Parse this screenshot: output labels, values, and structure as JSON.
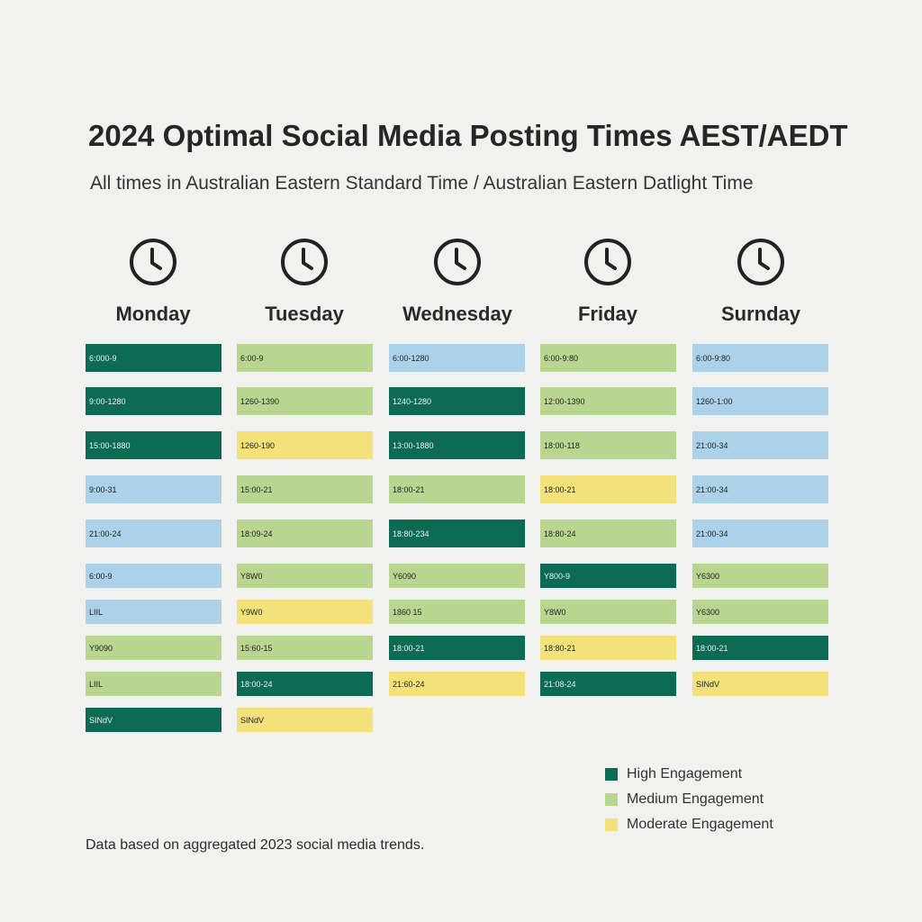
{
  "colors": {
    "high": "#0d6b53",
    "medium": "#b9d690",
    "moderate": "#f3e17a",
    "other": "#abd2e8"
  },
  "chart_data": {
    "type": "table",
    "title": "2024 Optimal Social Media Posting Times AEST/AEDT",
    "subtitle": "All times in Australian Eastern Standard Time / Australian Eastern Datlight Time",
    "days": [
      {
        "name": "Monday",
        "slots": [
          {
            "label": "6:000-9",
            "level": "high"
          },
          {
            "label": "9:00-1280",
            "level": "high"
          },
          {
            "label": "15:00-1880",
            "level": "high"
          },
          {
            "label": "9:00-31",
            "level": "other"
          },
          {
            "label": "21:00-24",
            "level": "other"
          },
          {
            "label": "6:00-9",
            "level": "other"
          },
          {
            "label": "LIIL",
            "level": "other"
          },
          {
            "label": "Y9090",
            "level": "medium"
          },
          {
            "label": "LIIL",
            "level": "medium"
          },
          {
            "label": "SINdV",
            "level": "high"
          }
        ]
      },
      {
        "name": "Tuesday",
        "slots": [
          {
            "label": "6:00-9",
            "level": "medium"
          },
          {
            "label": "1260-1390",
            "level": "medium"
          },
          {
            "label": "1260-190",
            "level": "moderate"
          },
          {
            "label": "15:00-21",
            "level": "medium"
          },
          {
            "label": "18:09-24",
            "level": "medium"
          },
          {
            "label": "Y8W0",
            "level": "medium"
          },
          {
            "label": "Y9W0",
            "level": "moderate"
          },
          {
            "label": "15:60-15",
            "level": "medium"
          },
          {
            "label": "18:00-24",
            "level": "high"
          },
          {
            "label": "SINdV",
            "level": "moderate"
          }
        ]
      },
      {
        "name": "Wednesday",
        "slots": [
          {
            "label": "6:00-1280",
            "level": "other"
          },
          {
            "label": "1240-1280",
            "level": "high"
          },
          {
            "label": "13:00-1880",
            "level": "high"
          },
          {
            "label": "18:00-21",
            "level": "medium"
          },
          {
            "label": "18:80-234",
            "level": "high"
          },
          {
            "label": "Y6090",
            "level": "medium"
          },
          {
            "label": "1860 15",
            "level": "medium"
          },
          {
            "label": "18:00-21",
            "level": "high"
          },
          {
            "label": "21:60-24",
            "level": "moderate"
          }
        ]
      },
      {
        "name": "Friday",
        "slots": [
          {
            "label": "6:00-9:80",
            "level": "medium"
          },
          {
            "label": "12:00-1390",
            "level": "medium"
          },
          {
            "label": "18:00-118",
            "level": "medium"
          },
          {
            "label": "18:00-21",
            "level": "moderate"
          },
          {
            "label": "18:80-24",
            "level": "medium"
          },
          {
            "label": "Y800-9",
            "level": "high"
          },
          {
            "label": "Y8W0",
            "level": "medium"
          },
          {
            "label": "18:80-21",
            "level": "moderate"
          },
          {
            "label": "21:08-24",
            "level": "high"
          }
        ]
      },
      {
        "name": "Surnday",
        "slots": [
          {
            "label": "6:00-9:80",
            "level": "other"
          },
          {
            "label": "1260-1:00",
            "level": "other"
          },
          {
            "label": "21:00-34",
            "level": "other"
          },
          {
            "label": "21:00-34",
            "level": "other"
          },
          {
            "label": "21:00-34",
            "level": "other"
          },
          {
            "label": "Y6300",
            "level": "medium"
          },
          {
            "label": "Y6300",
            "level": "medium"
          },
          {
            "label": "18:00-21",
            "level": "high"
          },
          {
            "label": "SINdV",
            "level": "moderate"
          }
        ]
      }
    ],
    "legend": [
      {
        "label": "High Engagement",
        "level": "high"
      },
      {
        "label": "Medium Engagement",
        "level": "medium"
      },
      {
        "label": "Moderate Engagement",
        "level": "moderate"
      }
    ],
    "footnote": "Data based on aggregated 2023 social media trends."
  }
}
